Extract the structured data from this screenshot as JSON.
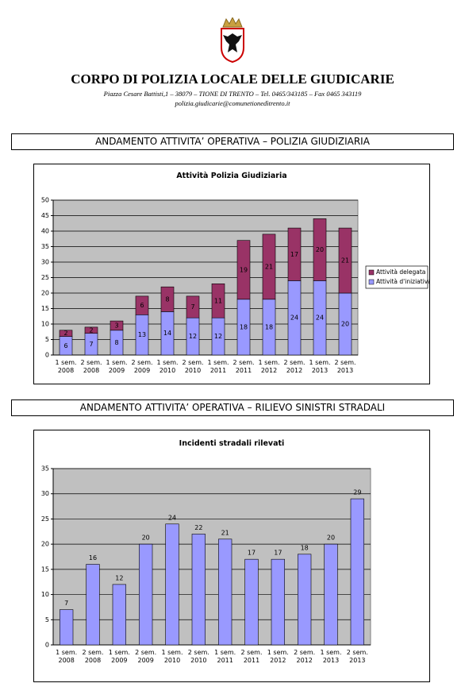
{
  "header": {
    "title": "CORPO DI POLIZIA LOCALE DELLE GIUDICARIE",
    "address": "Piazza Cesare Battisti,1 – 38079 – TIONE DI TRENTO – Tel. 0465/343185 – Fax 0465 343119",
    "email": "polizia.giudicarie@comunetionedìtrento.it"
  },
  "sections": [
    "ANDAMENTO ATTIVITA’ OPERATIVA – POLIZIA GIUDIZIARIA",
    "ANDAMENTO ATTIVITA’ OPERATIVA – RILIEVO SINISTRI STRADALI"
  ],
  "chart_data": [
    {
      "type": "stacked_bar",
      "title": "Attività Polizia Giudiziaria",
      "categories": [
        "1 sem. 2008",
        "2 sem. 2008",
        "1 sem. 2009",
        "2 sem. 2009",
        "1 sem. 2010",
        "2 sem. 2010",
        "1 sem. 2011",
        "2 sem. 2011",
        "1 sem. 2012",
        "2 sem. 2012",
        "1 sem. 2013",
        "2 sem. 2013"
      ],
      "series": [
        {
          "name": "Attività d'iniziativa",
          "color": "#9999ff",
          "values": [
            6,
            7,
            8,
            13,
            14,
            12,
            12,
            18,
            18,
            24,
            24,
            20
          ]
        },
        {
          "name": "Attività delegata",
          "color": "#993366",
          "values": [
            2,
            2,
            3,
            6,
            8,
            7,
            11,
            19,
            21,
            17,
            20,
            21
          ]
        }
      ],
      "ylim": [
        0,
        50
      ],
      "yticks": [
        0,
        5,
        10,
        15,
        20,
        25,
        30,
        35,
        40,
        45,
        50
      ],
      "grid": true,
      "legend": "right",
      "data_labels": "inside"
    },
    {
      "type": "bar",
      "title": "Incidenti stradali rilevati",
      "categories": [
        "1 sem. 2008",
        "2 sem. 2008",
        "1 sem. 2009",
        "2 sem. 2009",
        "1 sem. 2010",
        "2 sem. 2010",
        "1 sem. 2011",
        "2 sem. 2011",
        "1 sem. 2012",
        "2 sem. 2012",
        "1 sem. 2013",
        "2 sem. 2013"
      ],
      "values": [
        7,
        16,
        12,
        20,
        24,
        22,
        21,
        17,
        17,
        18,
        20,
        29
      ],
      "color": "#9999ff",
      "ylim": [
        0,
        35
      ],
      "yticks": [
        0,
        5,
        10,
        15,
        20,
        25,
        30,
        35
      ],
      "grid": true,
      "data_labels": "above"
    }
  ]
}
